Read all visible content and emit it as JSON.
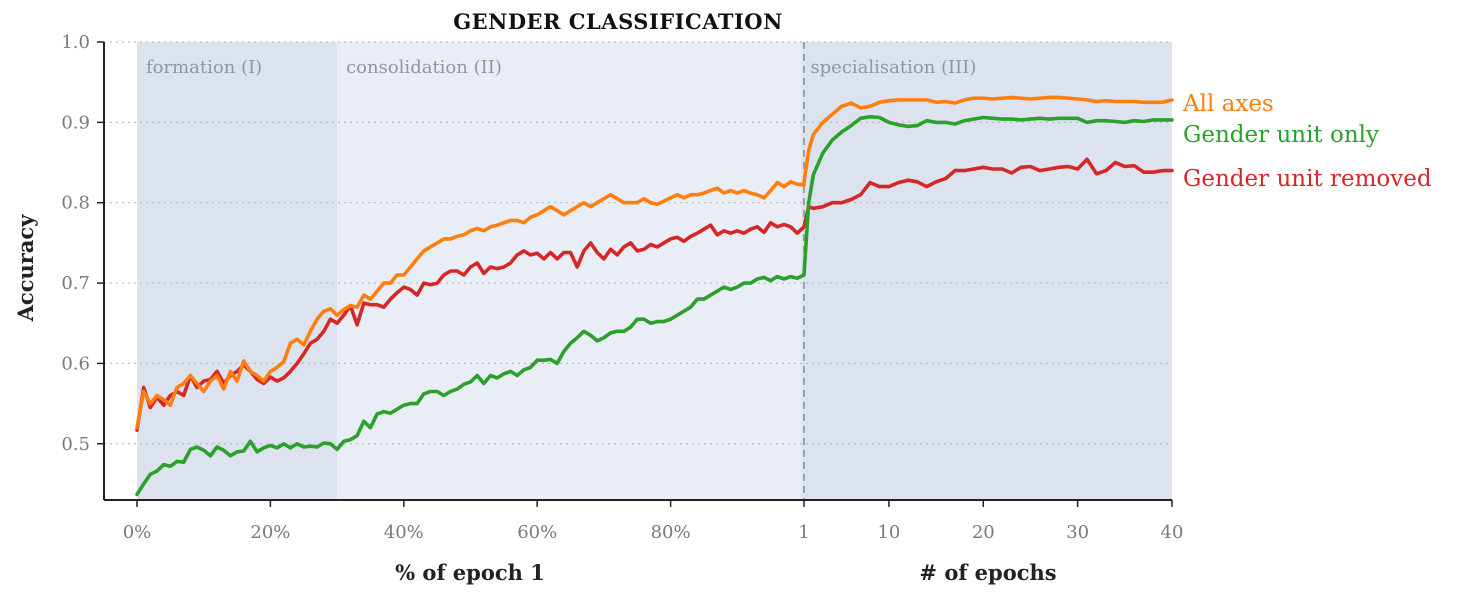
{
  "chart_data": {
    "type": "line",
    "title": "GENDER CLASSIFICATION",
    "ylabel": "Accuracy",
    "xlabel_left": "% of epoch 1",
    "xlabel_right": "# of epochs",
    "ylim": [
      0.43,
      1.0
    ],
    "yticks": [
      0.5,
      0.6,
      0.7,
      0.8,
      0.9,
      1.0
    ],
    "ytick_labels": [
      "0.5",
      "0.6",
      "0.7",
      "0.8",
      "0.9",
      "1.0"
    ],
    "grid": "horizontal-dotted",
    "x_left_range": [
      0,
      100
    ],
    "x_left_ticks": [
      0,
      20,
      40,
      60,
      80
    ],
    "x_left_tick_labels": [
      "0%",
      "20%",
      "40%",
      "60%",
      "80%"
    ],
    "x_right_range": [
      1,
      40
    ],
    "x_right_ticks": [
      1,
      10,
      20,
      30,
      40
    ],
    "x_right_tick_labels": [
      "1",
      "10",
      "20",
      "30",
      "40"
    ],
    "phases": [
      {
        "label": "formation (I)",
        "from_pct": 0,
        "to_pct": 30,
        "color": "#dde3ee"
      },
      {
        "label": "consolidation (II)",
        "from_pct": 30,
        "to_pct": 100,
        "color": "#e9edf5"
      },
      {
        "label": "specialisation (III)",
        "from_epoch": 2,
        "to_epoch": 40,
        "color": "#dde3ee"
      }
    ],
    "series": [
      {
        "name": "All axes",
        "color": "#ff7f0e",
        "left_x": [
          0,
          1,
          2,
          3,
          4,
          5,
          6,
          7,
          8,
          9,
          10,
          11,
          12,
          13,
          14,
          15,
          16,
          17,
          18,
          19,
          20,
          21,
          22,
          23,
          24,
          25,
          26,
          27,
          28,
          29,
          30,
          31,
          32,
          33,
          34,
          35,
          36,
          37,
          38,
          39,
          40,
          41,
          42,
          43,
          44,
          45,
          46,
          47,
          48,
          49,
          50,
          51,
          52,
          53,
          54,
          55,
          56,
          57,
          58,
          59,
          60,
          61,
          62,
          63,
          64,
          65,
          66,
          67,
          68,
          69,
          70,
          71,
          72,
          73,
          74,
          75,
          76,
          77,
          78,
          79,
          80,
          81,
          82,
          83,
          84,
          85,
          86,
          87,
          88,
          89,
          90,
          91,
          92,
          93,
          94,
          95,
          96,
          97,
          98,
          99,
          100
        ],
        "left_y": [
          0.52,
          0.565,
          0.55,
          0.56,
          0.555,
          0.548,
          0.57,
          0.575,
          0.585,
          0.575,
          0.565,
          0.578,
          0.585,
          0.568,
          0.59,
          0.578,
          0.603,
          0.59,
          0.585,
          0.578,
          0.59,
          0.595,
          0.602,
          0.625,
          0.63,
          0.623,
          0.64,
          0.655,
          0.665,
          0.668,
          0.66,
          0.667,
          0.672,
          0.67,
          0.685,
          0.68,
          0.69,
          0.7,
          0.7,
          0.71,
          0.71,
          0.72,
          0.73,
          0.74,
          0.745,
          0.75,
          0.755,
          0.755,
          0.758,
          0.76,
          0.765,
          0.768,
          0.765,
          0.77,
          0.772,
          0.775,
          0.778,
          0.778,
          0.775,
          0.782,
          0.785,
          0.79,
          0.795,
          0.79,
          0.785,
          0.79,
          0.795,
          0.8,
          0.795,
          0.8,
          0.805,
          0.81,
          0.805,
          0.8,
          0.8,
          0.8,
          0.805,
          0.8,
          0.798,
          0.802,
          0.806,
          0.81,
          0.806,
          0.81,
          0.81,
          0.812,
          0.815,
          0.818,
          0.812,
          0.815,
          0.812,
          0.815,
          0.812,
          0.81,
          0.806,
          0.815,
          0.825,
          0.82,
          0.826,
          0.823,
          0.822
        ],
        "right_x": [
          1,
          1.5,
          2,
          3,
          4,
          5,
          6,
          7,
          8,
          9,
          10,
          11,
          12,
          13,
          14,
          15,
          16,
          17,
          18,
          19,
          20,
          21,
          22,
          23,
          24,
          25,
          26,
          27,
          28,
          29,
          30,
          31,
          32,
          33,
          34,
          35,
          36,
          37,
          38,
          39,
          40
        ],
        "right_y": [
          0.825,
          0.865,
          0.885,
          0.9,
          0.91,
          0.92,
          0.924,
          0.918,
          0.92,
          0.925,
          0.927,
          0.928,
          0.928,
          0.928,
          0.928,
          0.925,
          0.926,
          0.924,
          0.928,
          0.93,
          0.93,
          0.929,
          0.93,
          0.931,
          0.93,
          0.929,
          0.93,
          0.931,
          0.931,
          0.93,
          0.929,
          0.928,
          0.926,
          0.927,
          0.926,
          0.926,
          0.926,
          0.925,
          0.925,
          0.925,
          0.928
        ]
      },
      {
        "name": "Gender unit only",
        "color": "#2ca02c",
        "left_x": [
          0,
          1,
          2,
          3,
          4,
          5,
          6,
          7,
          8,
          9,
          10,
          11,
          12,
          13,
          14,
          15,
          16,
          17,
          18,
          19,
          20,
          21,
          22,
          23,
          24,
          25,
          26,
          27,
          28,
          29,
          30,
          31,
          32,
          33,
          34,
          35,
          36,
          37,
          38,
          39,
          40,
          41,
          42,
          43,
          44,
          45,
          46,
          47,
          48,
          49,
          50,
          51,
          52,
          53,
          54,
          55,
          56,
          57,
          58,
          59,
          60,
          61,
          62,
          63,
          64,
          65,
          66,
          67,
          68,
          69,
          70,
          71,
          72,
          73,
          74,
          75,
          76,
          77,
          78,
          79,
          80,
          81,
          82,
          83,
          84,
          85,
          86,
          87,
          88,
          89,
          90,
          91,
          92,
          93,
          94,
          95,
          96,
          97,
          98,
          99,
          100
        ],
        "left_y": [
          0.437,
          0.45,
          0.462,
          0.466,
          0.474,
          0.472,
          0.478,
          0.477,
          0.493,
          0.496,
          0.492,
          0.485,
          0.496,
          0.492,
          0.485,
          0.49,
          0.491,
          0.503,
          0.49,
          0.495,
          0.498,
          0.495,
          0.5,
          0.495,
          0.5,
          0.496,
          0.497,
          0.496,
          0.501,
          0.5,
          0.493,
          0.503,
          0.505,
          0.51,
          0.528,
          0.52,
          0.537,
          0.54,
          0.538,
          0.543,
          0.548,
          0.55,
          0.55,
          0.562,
          0.565,
          0.565,
          0.56,
          0.565,
          0.568,
          0.574,
          0.577,
          0.585,
          0.575,
          0.585,
          0.582,
          0.587,
          0.59,
          0.585,
          0.592,
          0.595,
          0.604,
          0.604,
          0.605,
          0.6,
          0.615,
          0.625,
          0.632,
          0.64,
          0.635,
          0.628,
          0.632,
          0.638,
          0.64,
          0.64,
          0.645,
          0.655,
          0.655,
          0.65,
          0.652,
          0.652,
          0.655,
          0.66,
          0.665,
          0.67,
          0.68,
          0.68,
          0.685,
          0.69,
          0.695,
          0.692,
          0.695,
          0.7,
          0.7,
          0.705,
          0.707,
          0.703,
          0.708,
          0.705,
          0.708,
          0.706,
          0.71
        ],
        "right_x": [
          1,
          1.5,
          2,
          3,
          4,
          5,
          6,
          7,
          8,
          9,
          10,
          11,
          12,
          13,
          14,
          15,
          16,
          17,
          18,
          19,
          20,
          21,
          22,
          23,
          24,
          25,
          26,
          27,
          28,
          29,
          30,
          31,
          32,
          33,
          34,
          35,
          36,
          37,
          38,
          39,
          40
        ],
        "right_y": [
          0.71,
          0.8,
          0.835,
          0.862,
          0.878,
          0.888,
          0.896,
          0.905,
          0.907,
          0.906,
          0.9,
          0.897,
          0.895,
          0.896,
          0.902,
          0.9,
          0.9,
          0.898,
          0.902,
          0.904,
          0.906,
          0.905,
          0.904,
          0.904,
          0.903,
          0.904,
          0.905,
          0.904,
          0.905,
          0.905,
          0.905,
          0.9,
          0.902,
          0.902,
          0.901,
          0.9,
          0.902,
          0.901,
          0.903,
          0.903,
          0.903
        ]
      },
      {
        "name": "Gender unit removed",
        "color": "#d62728",
        "left_x": [
          0,
          1,
          2,
          3,
          4,
          5,
          6,
          7,
          8,
          9,
          10,
          11,
          12,
          13,
          14,
          15,
          16,
          17,
          18,
          19,
          20,
          21,
          22,
          23,
          24,
          25,
          26,
          27,
          28,
          29,
          30,
          31,
          32,
          33,
          34,
          35,
          36,
          37,
          38,
          39,
          40,
          41,
          42,
          43,
          44,
          45,
          46,
          47,
          48,
          49,
          50,
          51,
          52,
          53,
          54,
          55,
          56,
          57,
          58,
          59,
          60,
          61,
          62,
          63,
          64,
          65,
          66,
          67,
          68,
          69,
          70,
          71,
          72,
          73,
          74,
          75,
          76,
          77,
          78,
          79,
          80,
          81,
          82,
          83,
          84,
          85,
          86,
          87,
          88,
          89,
          90,
          91,
          92,
          93,
          94,
          95,
          96,
          97,
          98,
          99,
          100
        ],
        "left_y": [
          0.517,
          0.57,
          0.545,
          0.558,
          0.548,
          0.56,
          0.565,
          0.56,
          0.585,
          0.57,
          0.578,
          0.58,
          0.59,
          0.575,
          0.585,
          0.59,
          0.598,
          0.59,
          0.58,
          0.575,
          0.583,
          0.578,
          0.582,
          0.59,
          0.6,
          0.612,
          0.625,
          0.63,
          0.64,
          0.655,
          0.65,
          0.66,
          0.672,
          0.648,
          0.675,
          0.673,
          0.673,
          0.67,
          0.68,
          0.688,
          0.695,
          0.692,
          0.685,
          0.7,
          0.698,
          0.7,
          0.71,
          0.715,
          0.715,
          0.71,
          0.72,
          0.725,
          0.712,
          0.72,
          0.718,
          0.72,
          0.725,
          0.735,
          0.74,
          0.735,
          0.737,
          0.73,
          0.738,
          0.73,
          0.738,
          0.738,
          0.72,
          0.74,
          0.75,
          0.738,
          0.73,
          0.742,
          0.735,
          0.745,
          0.75,
          0.74,
          0.742,
          0.748,
          0.745,
          0.75,
          0.755,
          0.757,
          0.752,
          0.758,
          0.762,
          0.767,
          0.772,
          0.76,
          0.765,
          0.762,
          0.765,
          0.762,
          0.767,
          0.77,
          0.763,
          0.775,
          0.77,
          0.773,
          0.77,
          0.762,
          0.77
        ],
        "right_x": [
          1,
          1.5,
          2,
          3,
          4,
          5,
          6,
          7,
          8,
          9,
          10,
          11,
          12,
          13,
          14,
          15,
          16,
          17,
          18,
          19,
          20,
          21,
          22,
          23,
          24,
          25,
          26,
          27,
          28,
          29,
          30,
          31,
          32,
          33,
          34,
          35,
          36,
          37,
          38,
          39,
          40
        ],
        "right_y": [
          0.77,
          0.795,
          0.793,
          0.795,
          0.8,
          0.8,
          0.804,
          0.81,
          0.825,
          0.82,
          0.82,
          0.825,
          0.828,
          0.826,
          0.82,
          0.826,
          0.83,
          0.84,
          0.84,
          0.842,
          0.844,
          0.842,
          0.842,
          0.837,
          0.844,
          0.845,
          0.84,
          0.842,
          0.844,
          0.845,
          0.842,
          0.854,
          0.836,
          0.84,
          0.85,
          0.845,
          0.846,
          0.838,
          0.838,
          0.84,
          0.84
        ]
      }
    ]
  }
}
